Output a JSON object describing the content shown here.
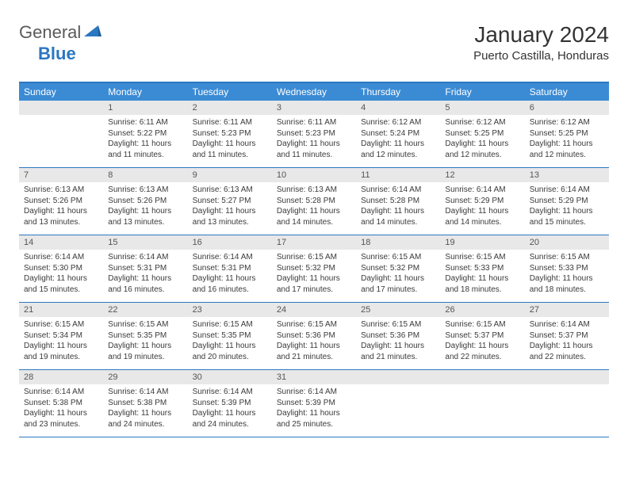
{
  "brand": {
    "part1": "General",
    "part2": "Blue"
  },
  "title": "January 2024",
  "location": "Puerto Castilla, Honduras",
  "colors": {
    "header_bar": "#3b8bd4",
    "rule": "#2b77c0",
    "daynum_bg": "#e8e8e8",
    "text": "#333333",
    "logo_gray": "#5a5a5a",
    "logo_blue": "#2b77c0",
    "background": "#ffffff"
  },
  "day_names": [
    "Sunday",
    "Monday",
    "Tuesday",
    "Wednesday",
    "Thursday",
    "Friday",
    "Saturday"
  ],
  "weeks": [
    [
      {
        "empty": true
      },
      {
        "n": "1",
        "sunrise": "6:11 AM",
        "sunset": "5:22 PM",
        "dl1": "Daylight: 11 hours",
        "dl2": "and 11 minutes."
      },
      {
        "n": "2",
        "sunrise": "6:11 AM",
        "sunset": "5:23 PM",
        "dl1": "Daylight: 11 hours",
        "dl2": "and 11 minutes."
      },
      {
        "n": "3",
        "sunrise": "6:11 AM",
        "sunset": "5:23 PM",
        "dl1": "Daylight: 11 hours",
        "dl2": "and 11 minutes."
      },
      {
        "n": "4",
        "sunrise": "6:12 AM",
        "sunset": "5:24 PM",
        "dl1": "Daylight: 11 hours",
        "dl2": "and 12 minutes."
      },
      {
        "n": "5",
        "sunrise": "6:12 AM",
        "sunset": "5:25 PM",
        "dl1": "Daylight: 11 hours",
        "dl2": "and 12 minutes."
      },
      {
        "n": "6",
        "sunrise": "6:12 AM",
        "sunset": "5:25 PM",
        "dl1": "Daylight: 11 hours",
        "dl2": "and 12 minutes."
      }
    ],
    [
      {
        "n": "7",
        "sunrise": "6:13 AM",
        "sunset": "5:26 PM",
        "dl1": "Daylight: 11 hours",
        "dl2": "and 13 minutes."
      },
      {
        "n": "8",
        "sunrise": "6:13 AM",
        "sunset": "5:26 PM",
        "dl1": "Daylight: 11 hours",
        "dl2": "and 13 minutes."
      },
      {
        "n": "9",
        "sunrise": "6:13 AM",
        "sunset": "5:27 PM",
        "dl1": "Daylight: 11 hours",
        "dl2": "and 13 minutes."
      },
      {
        "n": "10",
        "sunrise": "6:13 AM",
        "sunset": "5:28 PM",
        "dl1": "Daylight: 11 hours",
        "dl2": "and 14 minutes."
      },
      {
        "n": "11",
        "sunrise": "6:14 AM",
        "sunset": "5:28 PM",
        "dl1": "Daylight: 11 hours",
        "dl2": "and 14 minutes."
      },
      {
        "n": "12",
        "sunrise": "6:14 AM",
        "sunset": "5:29 PM",
        "dl1": "Daylight: 11 hours",
        "dl2": "and 14 minutes."
      },
      {
        "n": "13",
        "sunrise": "6:14 AM",
        "sunset": "5:29 PM",
        "dl1": "Daylight: 11 hours",
        "dl2": "and 15 minutes."
      }
    ],
    [
      {
        "n": "14",
        "sunrise": "6:14 AM",
        "sunset": "5:30 PM",
        "dl1": "Daylight: 11 hours",
        "dl2": "and 15 minutes."
      },
      {
        "n": "15",
        "sunrise": "6:14 AM",
        "sunset": "5:31 PM",
        "dl1": "Daylight: 11 hours",
        "dl2": "and 16 minutes."
      },
      {
        "n": "16",
        "sunrise": "6:14 AM",
        "sunset": "5:31 PM",
        "dl1": "Daylight: 11 hours",
        "dl2": "and 16 minutes."
      },
      {
        "n": "17",
        "sunrise": "6:15 AM",
        "sunset": "5:32 PM",
        "dl1": "Daylight: 11 hours",
        "dl2": "and 17 minutes."
      },
      {
        "n": "18",
        "sunrise": "6:15 AM",
        "sunset": "5:32 PM",
        "dl1": "Daylight: 11 hours",
        "dl2": "and 17 minutes."
      },
      {
        "n": "19",
        "sunrise": "6:15 AM",
        "sunset": "5:33 PM",
        "dl1": "Daylight: 11 hours",
        "dl2": "and 18 minutes."
      },
      {
        "n": "20",
        "sunrise": "6:15 AM",
        "sunset": "5:33 PM",
        "dl1": "Daylight: 11 hours",
        "dl2": "and 18 minutes."
      }
    ],
    [
      {
        "n": "21",
        "sunrise": "6:15 AM",
        "sunset": "5:34 PM",
        "dl1": "Daylight: 11 hours",
        "dl2": "and 19 minutes."
      },
      {
        "n": "22",
        "sunrise": "6:15 AM",
        "sunset": "5:35 PM",
        "dl1": "Daylight: 11 hours",
        "dl2": "and 19 minutes."
      },
      {
        "n": "23",
        "sunrise": "6:15 AM",
        "sunset": "5:35 PM",
        "dl1": "Daylight: 11 hours",
        "dl2": "and 20 minutes."
      },
      {
        "n": "24",
        "sunrise": "6:15 AM",
        "sunset": "5:36 PM",
        "dl1": "Daylight: 11 hours",
        "dl2": "and 21 minutes."
      },
      {
        "n": "25",
        "sunrise": "6:15 AM",
        "sunset": "5:36 PM",
        "dl1": "Daylight: 11 hours",
        "dl2": "and 21 minutes."
      },
      {
        "n": "26",
        "sunrise": "6:15 AM",
        "sunset": "5:37 PM",
        "dl1": "Daylight: 11 hours",
        "dl2": "and 22 minutes."
      },
      {
        "n": "27",
        "sunrise": "6:14 AM",
        "sunset": "5:37 PM",
        "dl1": "Daylight: 11 hours",
        "dl2": "and 22 minutes."
      }
    ],
    [
      {
        "n": "28",
        "sunrise": "6:14 AM",
        "sunset": "5:38 PM",
        "dl1": "Daylight: 11 hours",
        "dl2": "and 23 minutes."
      },
      {
        "n": "29",
        "sunrise": "6:14 AM",
        "sunset": "5:38 PM",
        "dl1": "Daylight: 11 hours",
        "dl2": "and 24 minutes."
      },
      {
        "n": "30",
        "sunrise": "6:14 AM",
        "sunset": "5:39 PM",
        "dl1": "Daylight: 11 hours",
        "dl2": "and 24 minutes."
      },
      {
        "n": "31",
        "sunrise": "6:14 AM",
        "sunset": "5:39 PM",
        "dl1": "Daylight: 11 hours",
        "dl2": "and 25 minutes."
      },
      {
        "empty": true
      },
      {
        "empty": true
      },
      {
        "empty": true
      }
    ]
  ]
}
